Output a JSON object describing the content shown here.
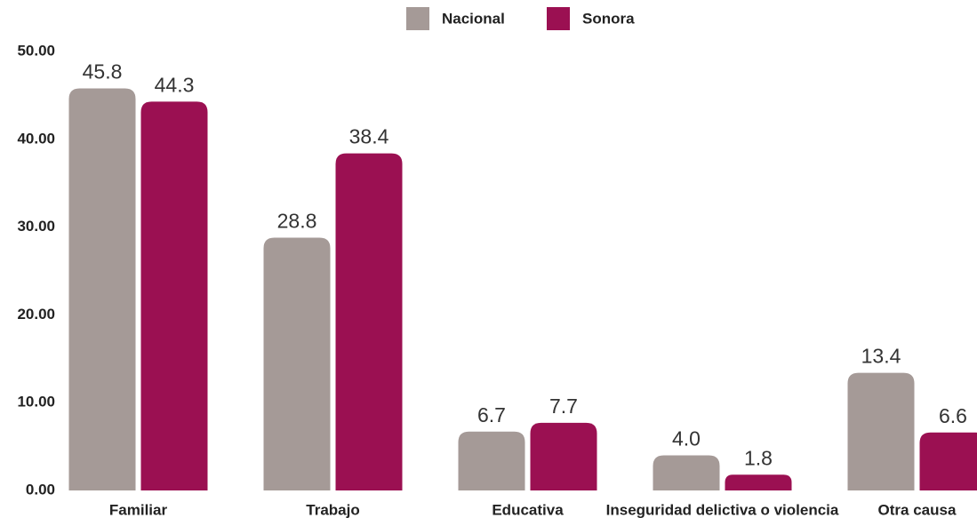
{
  "chart_data": {
    "type": "bar",
    "categories": [
      "Familiar",
      "Trabajo",
      "Educativa",
      "Inseguridad delictiva o violencia",
      "Otra causa"
    ],
    "series": [
      {
        "name": "Nacional",
        "color": "#a59a97",
        "values": [
          45.8,
          28.8,
          6.7,
          4.0,
          13.4
        ],
        "value_labels": [
          "45.8",
          "28.8",
          "6.7",
          "4.0",
          "13.4"
        ]
      },
      {
        "name": "Sonora",
        "color": "#9b1052",
        "values": [
          44.3,
          38.4,
          7.7,
          1.8,
          6.6
        ],
        "value_labels": [
          "44.3",
          "38.4",
          "7.7",
          "1.8",
          "6.6"
        ]
      }
    ],
    "ylim": [
      0,
      50
    ],
    "yticks": [
      {
        "value": 0,
        "label": "0.00"
      },
      {
        "value": 10,
        "label": "10.00"
      },
      {
        "value": 20,
        "label": "20.00"
      },
      {
        "value": 30,
        "label": "30.00"
      },
      {
        "value": 40,
        "label": "40.00"
      },
      {
        "value": 50,
        "label": "50.00"
      }
    ],
    "legend": "top"
  }
}
